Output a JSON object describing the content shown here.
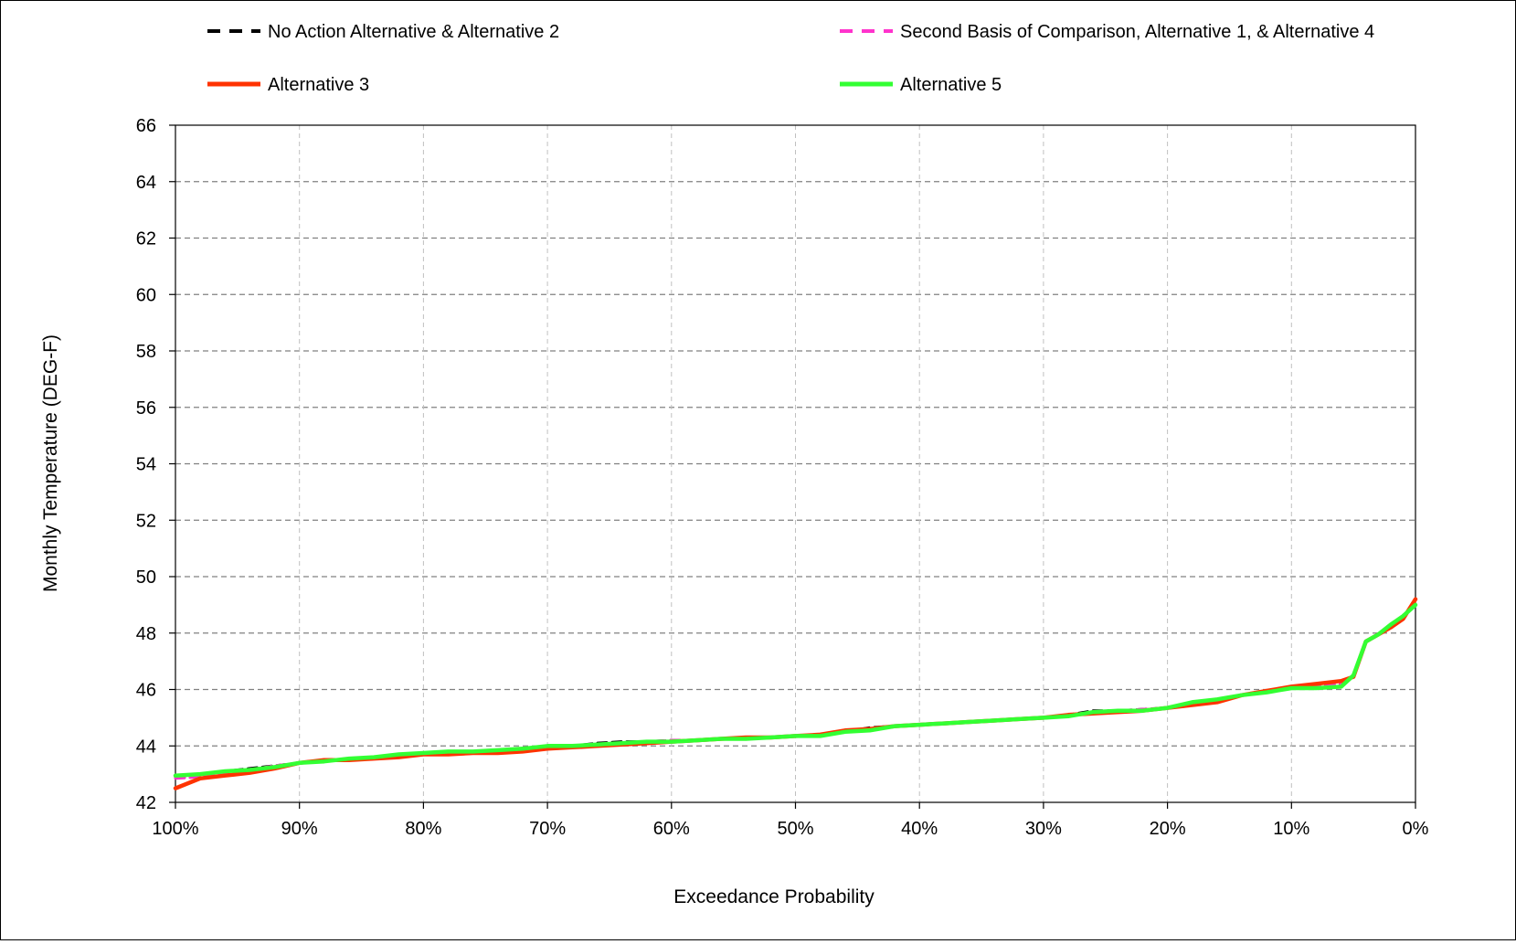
{
  "chart_data": {
    "type": "line",
    "title": "",
    "xlabel": "Exceedance Probability",
    "ylabel": "Monthly Temperature (DEG-F)",
    "xlim": [
      100,
      0
    ],
    "ylim": [
      42,
      66
    ],
    "x_ticks": [
      100,
      90,
      80,
      70,
      60,
      50,
      40,
      30,
      20,
      10,
      0
    ],
    "x_tick_labels": [
      "100%",
      "90%",
      "80%",
      "70%",
      "60%",
      "50%",
      "40%",
      "30%",
      "20%",
      "10%",
      "0%"
    ],
    "y_ticks": [
      42,
      44,
      46,
      48,
      50,
      52,
      54,
      56,
      58,
      60,
      62,
      64,
      66
    ],
    "y_tick_labels": [
      "42",
      "44",
      "46",
      "48",
      "50",
      "52",
      "54",
      "56",
      "58",
      "60",
      "62",
      "64",
      "66"
    ],
    "grid": true,
    "legend_position": "top",
    "series": [
      {
        "name": "No Action Alternative & Alternative 2",
        "color": "#000000",
        "dash": true,
        "x": [
          100,
          98,
          96,
          94,
          92,
          90,
          88,
          86,
          84,
          82,
          80,
          78,
          76,
          74,
          72,
          70,
          68,
          66,
          64,
          62,
          60,
          58,
          56,
          54,
          52,
          50,
          48,
          46,
          44,
          42,
          40,
          38,
          36,
          34,
          32,
          30,
          28,
          26,
          24,
          22,
          20,
          18,
          16,
          14,
          12,
          10,
          8,
          6,
          5,
          4,
          3,
          2,
          1,
          0
        ],
        "values": [
          42.9,
          42.95,
          43.1,
          43.2,
          43.3,
          43.4,
          43.5,
          43.5,
          43.6,
          43.7,
          43.75,
          43.8,
          43.8,
          43.85,
          43.9,
          44.0,
          44.0,
          44.1,
          44.15,
          44.15,
          44.2,
          44.2,
          44.25,
          44.3,
          44.3,
          44.35,
          44.4,
          44.5,
          44.65,
          44.7,
          44.75,
          44.8,
          44.85,
          44.9,
          44.95,
          45.0,
          45.1,
          45.25,
          45.25,
          45.3,
          45.35,
          45.5,
          45.6,
          45.8,
          45.9,
          46.05,
          46.1,
          46.15,
          46.5,
          47.7,
          47.95,
          48.3,
          48.6,
          49.0
        ]
      },
      {
        "name": "Second Basis of Comparison, Alternative 1, & Alternative 4",
        "color": "#ff33cc",
        "dash": true,
        "x": [
          100,
          98,
          96,
          94,
          92,
          90,
          88,
          86,
          84,
          82,
          80,
          78,
          76,
          74,
          72,
          70,
          68,
          66,
          64,
          62,
          60,
          58,
          56,
          54,
          52,
          50,
          48,
          46,
          44,
          42,
          40,
          38,
          36,
          34,
          32,
          30,
          28,
          26,
          24,
          22,
          20,
          18,
          16,
          14,
          12,
          10,
          8,
          6,
          5,
          4,
          3,
          2,
          1,
          0
        ],
        "values": [
          42.85,
          42.9,
          43.05,
          43.15,
          43.3,
          43.4,
          43.45,
          43.5,
          43.6,
          43.7,
          43.75,
          43.75,
          43.8,
          43.85,
          43.9,
          43.95,
          44.0,
          44.05,
          44.1,
          44.15,
          44.2,
          44.2,
          44.25,
          44.3,
          44.3,
          44.35,
          44.4,
          44.5,
          44.6,
          44.7,
          44.75,
          44.8,
          44.85,
          44.9,
          44.95,
          45.0,
          45.1,
          45.2,
          45.25,
          45.3,
          45.35,
          45.5,
          45.6,
          45.8,
          45.9,
          46.05,
          46.1,
          46.2,
          46.5,
          47.7,
          47.95,
          48.3,
          48.6,
          49.1
        ]
      },
      {
        "name": "Alternative 3",
        "color": "#ff3300",
        "dash": false,
        "x": [
          100,
          98,
          96,
          94,
          92,
          90,
          88,
          86,
          84,
          82,
          80,
          78,
          76,
          74,
          72,
          70,
          68,
          66,
          64,
          62,
          60,
          58,
          56,
          54,
          52,
          50,
          48,
          46,
          44,
          42,
          40,
          38,
          36,
          34,
          32,
          30,
          28,
          26,
          24,
          22,
          20,
          18,
          16,
          14,
          12,
          10,
          8,
          6,
          5,
          4,
          3,
          2,
          1,
          0
        ],
        "values": [
          42.5,
          42.85,
          42.95,
          43.05,
          43.2,
          43.4,
          43.5,
          43.5,
          43.55,
          43.6,
          43.7,
          43.7,
          43.75,
          43.75,
          43.8,
          43.9,
          43.95,
          44.0,
          44.05,
          44.1,
          44.15,
          44.2,
          44.25,
          44.3,
          44.3,
          44.35,
          44.4,
          44.55,
          44.6,
          44.7,
          44.75,
          44.8,
          44.85,
          44.9,
          44.95,
          45.0,
          45.1,
          45.15,
          45.2,
          45.25,
          45.35,
          45.45,
          45.55,
          45.8,
          45.95,
          46.1,
          46.2,
          46.3,
          46.45,
          47.7,
          47.95,
          48.2,
          48.5,
          49.2
        ]
      },
      {
        "name": "Alternative 5",
        "color": "#33ff33",
        "dash": false,
        "x": [
          100,
          98,
          96,
          94,
          92,
          90,
          88,
          86,
          84,
          82,
          80,
          78,
          76,
          74,
          72,
          70,
          68,
          66,
          64,
          62,
          60,
          58,
          56,
          54,
          52,
          50,
          48,
          46,
          44,
          42,
          40,
          38,
          36,
          34,
          32,
          30,
          28,
          26,
          24,
          22,
          20,
          18,
          16,
          14,
          12,
          10,
          8,
          6,
          5,
          4,
          3,
          2,
          1,
          0
        ],
        "values": [
          42.95,
          43.0,
          43.1,
          43.15,
          43.25,
          43.4,
          43.45,
          43.55,
          43.6,
          43.7,
          43.75,
          43.8,
          43.8,
          43.85,
          43.9,
          44.0,
          44.0,
          44.05,
          44.1,
          44.15,
          44.15,
          44.2,
          44.25,
          44.25,
          44.3,
          44.35,
          44.35,
          44.5,
          44.55,
          44.7,
          44.75,
          44.8,
          44.85,
          44.9,
          44.95,
          45.0,
          45.05,
          45.2,
          45.25,
          45.25,
          45.35,
          45.55,
          45.65,
          45.8,
          45.9,
          46.05,
          46.05,
          46.1,
          46.5,
          47.7,
          47.95,
          48.3,
          48.6,
          49.0
        ]
      }
    ]
  }
}
